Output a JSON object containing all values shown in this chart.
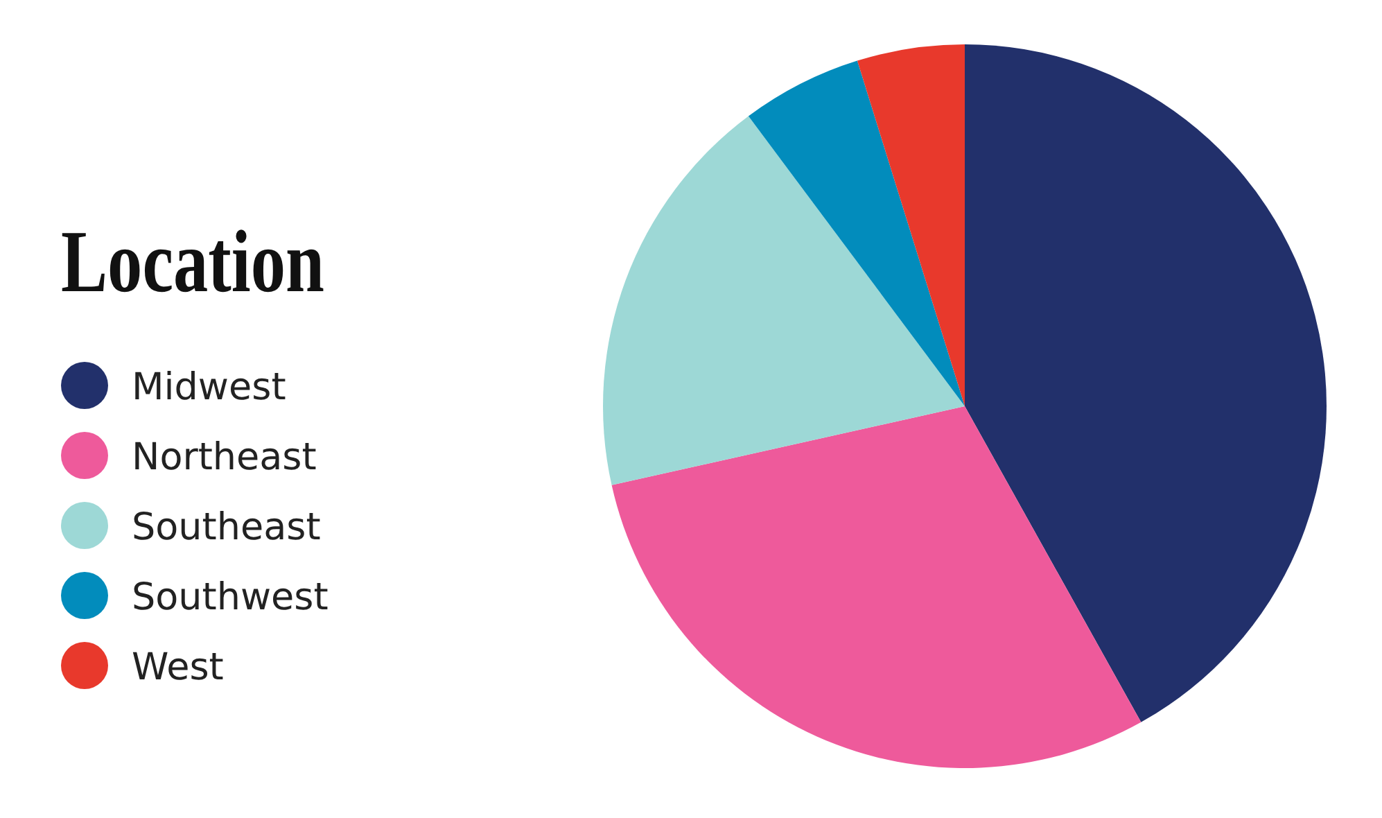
{
  "chart_data": {
    "type": "pie",
    "legend_title": "Location",
    "legend": "left",
    "categories": [
      "Midwest",
      "Northeast",
      "Southeast",
      "Southwest",
      "West"
    ],
    "values": [
      41.9,
      29.6,
      18.3,
      5.4,
      4.8
    ],
    "colors": [
      "#22306b",
      "#ee5a9b",
      "#9dd8d6",
      "#028cbc",
      "#e8392c"
    ]
  }
}
